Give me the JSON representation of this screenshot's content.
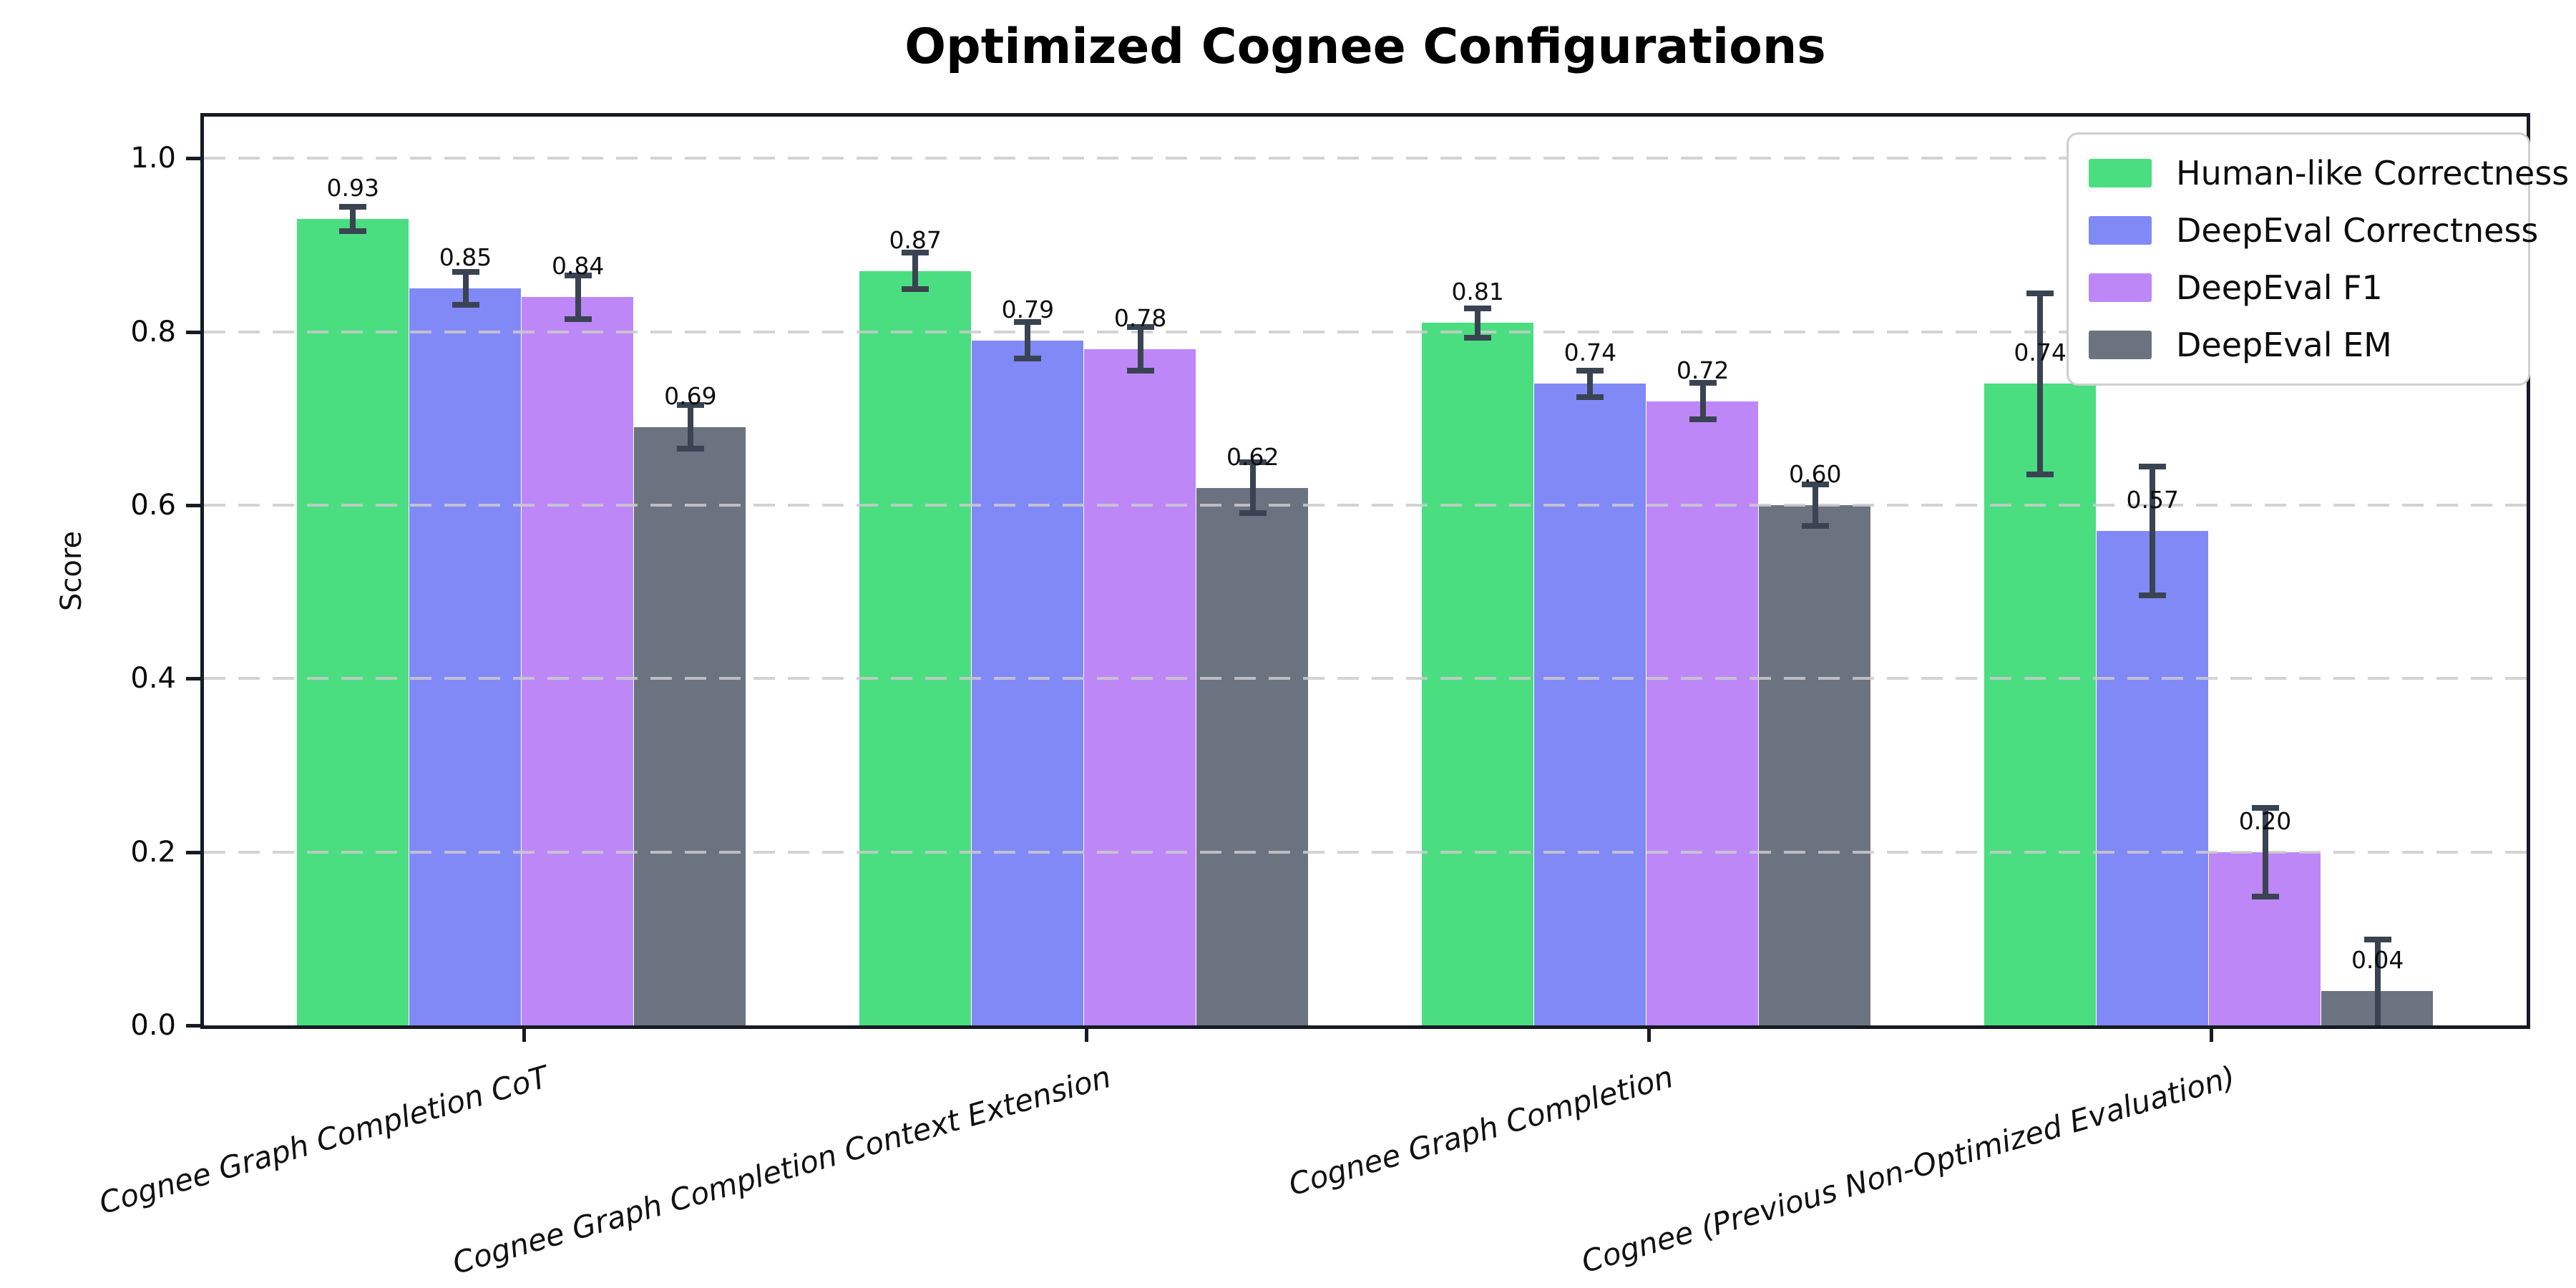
{
  "chart_data": {
    "type": "bar",
    "title": "Optimized Cognee Configurations",
    "ylabel": "Score",
    "xlabel": "",
    "ylim": [
      0,
      1.048
    ],
    "yticks": [
      0.0,
      0.2,
      0.4,
      0.6,
      0.8,
      1.0
    ],
    "ytick_labels": [
      "0.0",
      "0.2",
      "0.4",
      "0.6",
      "0.8",
      "1.0"
    ],
    "grid": "horizontal dashed gridlines drawn over bars",
    "legend_position": "upper right",
    "categories": [
      "Cognee Graph Completion CoT",
      "Cognee Graph Completion Context Extension",
      "Cognee Graph Completion",
      "Cognee (Previous Non-Optimized Evaluation)"
    ],
    "series": [
      {
        "name": "Human-like Correctness",
        "color": "#4ade80",
        "values": [
          0.93,
          0.87,
          0.81,
          0.74
        ],
        "labels": [
          "0.93",
          "0.87",
          "0.81",
          "0.74"
        ],
        "errors": [
          0.015,
          0.022,
          0.018,
          0.105
        ]
      },
      {
        "name": "DeepEval Correctness",
        "color": "#8189f6",
        "values": [
          0.85,
          0.79,
          0.74,
          0.57
        ],
        "labels": [
          "0.85",
          "0.79",
          "0.74",
          "0.57"
        ],
        "errors": [
          0.02,
          0.022,
          0.016,
          0.075
        ]
      },
      {
        "name": "DeepEval F1",
        "color": "#bd87f8",
        "values": [
          0.84,
          0.78,
          0.72,
          0.2
        ],
        "labels": [
          "0.84",
          "0.78",
          "0.72",
          "0.20"
        ],
        "errors": [
          0.026,
          0.026,
          0.022,
          0.052
        ]
      },
      {
        "name": "DeepEval EM",
        "color": "#6b7280",
        "values": [
          0.69,
          0.62,
          0.6,
          0.04
        ],
        "labels": [
          "0.69",
          "0.62",
          "0.60",
          "0.04"
        ],
        "errors": [
          0.026,
          0.03,
          0.025,
          0.06
        ]
      }
    ],
    "style": {
      "errorbar_color": "#3a4352",
      "spine_color": "#161b24",
      "grid_color": "#cbcbcb",
      "background": "#ffffff",
      "text_color": "#0d0d0d"
    }
  }
}
